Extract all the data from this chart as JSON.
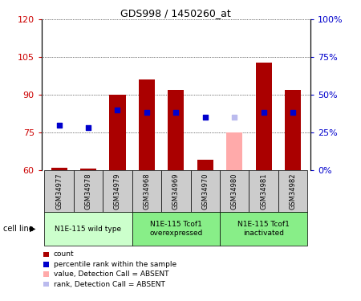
{
  "title": "GDS998 / 1450260_at",
  "samples": [
    "GSM34977",
    "GSM34978",
    "GSM34979",
    "GSM34968",
    "GSM34969",
    "GSM34970",
    "GSM34980",
    "GSM34981",
    "GSM34982"
  ],
  "bar_values": [
    61,
    60.5,
    90,
    96,
    92,
    64,
    75,
    103,
    92
  ],
  "bar_colors": [
    "#aa0000",
    "#aa0000",
    "#aa0000",
    "#aa0000",
    "#aa0000",
    "#aa0000",
    "#ffaaaa",
    "#aa0000",
    "#aa0000"
  ],
  "dot_values": [
    78,
    77,
    84,
    83,
    83,
    81,
    81,
    83,
    83
  ],
  "dot_colors": [
    "#0000cc",
    "#0000cc",
    "#0000cc",
    "#0000cc",
    "#0000cc",
    "#0000cc",
    "#bbbbee",
    "#0000cc",
    "#0000cc"
  ],
  "ylim_left": [
    60,
    120
  ],
  "ylim_right": [
    0,
    100
  ],
  "yticks_left": [
    60,
    75,
    90,
    105,
    120
  ],
  "yticks_right": [
    0,
    25,
    50,
    75,
    100
  ],
  "yticklabels_right": [
    "0%",
    "25%",
    "50%",
    "75%",
    "100%"
  ],
  "groups": [
    {
      "label": "N1E-115 wild type",
      "start": 0,
      "end": 2,
      "color": "#ccffcc"
    },
    {
      "label": "N1E-115 Tcof1\noverexpressed",
      "start": 3,
      "end": 5,
      "color": "#88ee88"
    },
    {
      "label": "N1E-115 Tcof1\ninactivated",
      "start": 6,
      "end": 8,
      "color": "#88ee88"
    }
  ],
  "cell_line_label": "cell line",
  "legend_items": [
    {
      "color": "#aa0000",
      "label": "count"
    },
    {
      "color": "#0000cc",
      "label": "percentile rank within the sample"
    },
    {
      "color": "#ffaaaa",
      "label": "value, Detection Call = ABSENT"
    },
    {
      "color": "#bbbbee",
      "label": "rank, Detection Call = ABSENT"
    }
  ],
  "bar_width": 0.55,
  "baseline": 60,
  "plot_bg_color": "#ffffff",
  "tick_color_left": "#cc0000",
  "tick_color_right": "#0000cc",
  "grid_color": "#000000",
  "sample_bg_color": "#cccccc"
}
